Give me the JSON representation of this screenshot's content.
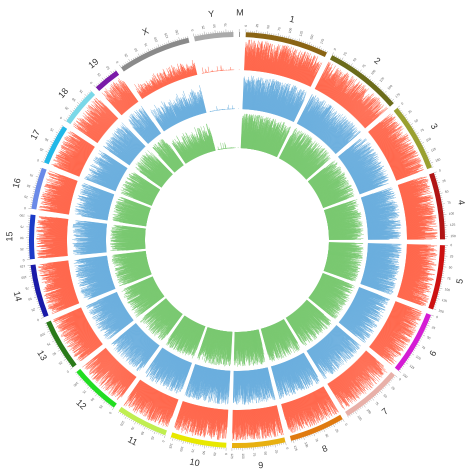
{
  "chromosomes": [
    {
      "name": "M",
      "length": 2,
      "color": "#888888",
      "tick_labels": []
    },
    {
      "name": "1",
      "length": 195,
      "color": "#8a6414",
      "tick_labels": [
        "0",
        "25",
        "50",
        "75",
        "100",
        "125",
        "150",
        "175"
      ]
    },
    {
      "name": "2",
      "length": 182,
      "color": "#6b6b1a",
      "tick_labels": [
        "0",
        "25",
        "50",
        "75",
        "100",
        "125",
        "150",
        "175"
      ]
    },
    {
      "name": "3",
      "length": 160,
      "color": "#9aa030",
      "tick_labels": [
        "0",
        "25",
        "50",
        "75",
        "100",
        "125",
        "150"
      ]
    },
    {
      "name": "4",
      "length": 157,
      "color": "#b01515",
      "tick_labels": [
        "0",
        "25",
        "50",
        "75",
        "100",
        "125",
        "150"
      ]
    },
    {
      "name": "5",
      "length": 152,
      "color": "#cc1111",
      "tick_labels": [
        "0",
        "25",
        "50",
        "75",
        "100",
        "125",
        "150"
      ]
    },
    {
      "name": "6",
      "length": 150,
      "color": "#d41cd4",
      "tick_labels": [
        "0",
        "25",
        "50",
        "75",
        "100",
        "125",
        "150"
      ]
    },
    {
      "name": "7",
      "length": 145,
      "color": "#e8b0a8",
      "tick_labels": [
        "0",
        "25",
        "50",
        "75",
        "100",
        "125"
      ]
    },
    {
      "name": "8",
      "length": 130,
      "color": "#e07a10",
      "tick_labels": [
        "0",
        "25",
        "50",
        "75",
        "100",
        "125"
      ]
    },
    {
      "name": "9",
      "length": 125,
      "color": "#e8b010",
      "tick_labels": [
        "0",
        "25",
        "50",
        "75",
        "100",
        "125"
      ]
    },
    {
      "name": "10",
      "length": 131,
      "color": "#e8e800",
      "tick_labels": [
        "0",
        "25",
        "50",
        "75",
        "100",
        "125"
      ]
    },
    {
      "name": "11",
      "length": 122,
      "color": "#c0ee50",
      "tick_labels": [
        "0",
        "25",
        "50",
        "75",
        "100"
      ]
    },
    {
      "name": "12",
      "length": 120,
      "color": "#22dd22",
      "tick_labels": [
        "0",
        "25",
        "50",
        "75",
        "100"
      ]
    },
    {
      "name": "13",
      "length": 121,
      "color": "#2a7a1a",
      "tick_labels": [
        "0",
        "25",
        "50",
        "75",
        "100"
      ]
    },
    {
      "name": "14",
      "length": 125,
      "color": "#1a1aa8",
      "tick_labels": [
        "0",
        "25",
        "50",
        "75",
        "100",
        "125"
      ]
    },
    {
      "name": "15",
      "length": 104,
      "color": "#1a3ac8",
      "tick_labels": [
        "0",
        "25",
        "50",
        "75",
        "100"
      ]
    },
    {
      "name": "16",
      "length": 98,
      "color": "#6a8ae8",
      "tick_labels": [
        "0",
        "25",
        "50",
        "75"
      ]
    },
    {
      "name": "17",
      "length": 95,
      "color": "#22b8e8",
      "tick_labels": [
        "0",
        "25",
        "50",
        "75"
      ]
    },
    {
      "name": "18",
      "length": 91,
      "color": "#7ad8e8",
      "tick_labels": [
        "0",
        "25",
        "50",
        "75"
      ]
    },
    {
      "name": "19",
      "length": 61,
      "color": "#7a1aa8",
      "tick_labels": [
        "0",
        "25",
        "50"
      ]
    },
    {
      "name": "X",
      "length": 171,
      "color": "#8a8a8a",
      "tick_labels": [
        "0",
        "25",
        "50",
        "75",
        "100",
        "125",
        "150"
      ]
    },
    {
      "name": "Y",
      "length": 92,
      "color": "#aaaaaa",
      "tick_labels": [
        "0",
        "25",
        "50",
        "75"
      ]
    }
  ],
  "tracks": [
    {
      "color": "#ff6347",
      "density": "high"
    },
    {
      "color": "#6aaede",
      "density": "high"
    },
    {
      "color": "#79c870",
      "density": "high"
    }
  ]
}
